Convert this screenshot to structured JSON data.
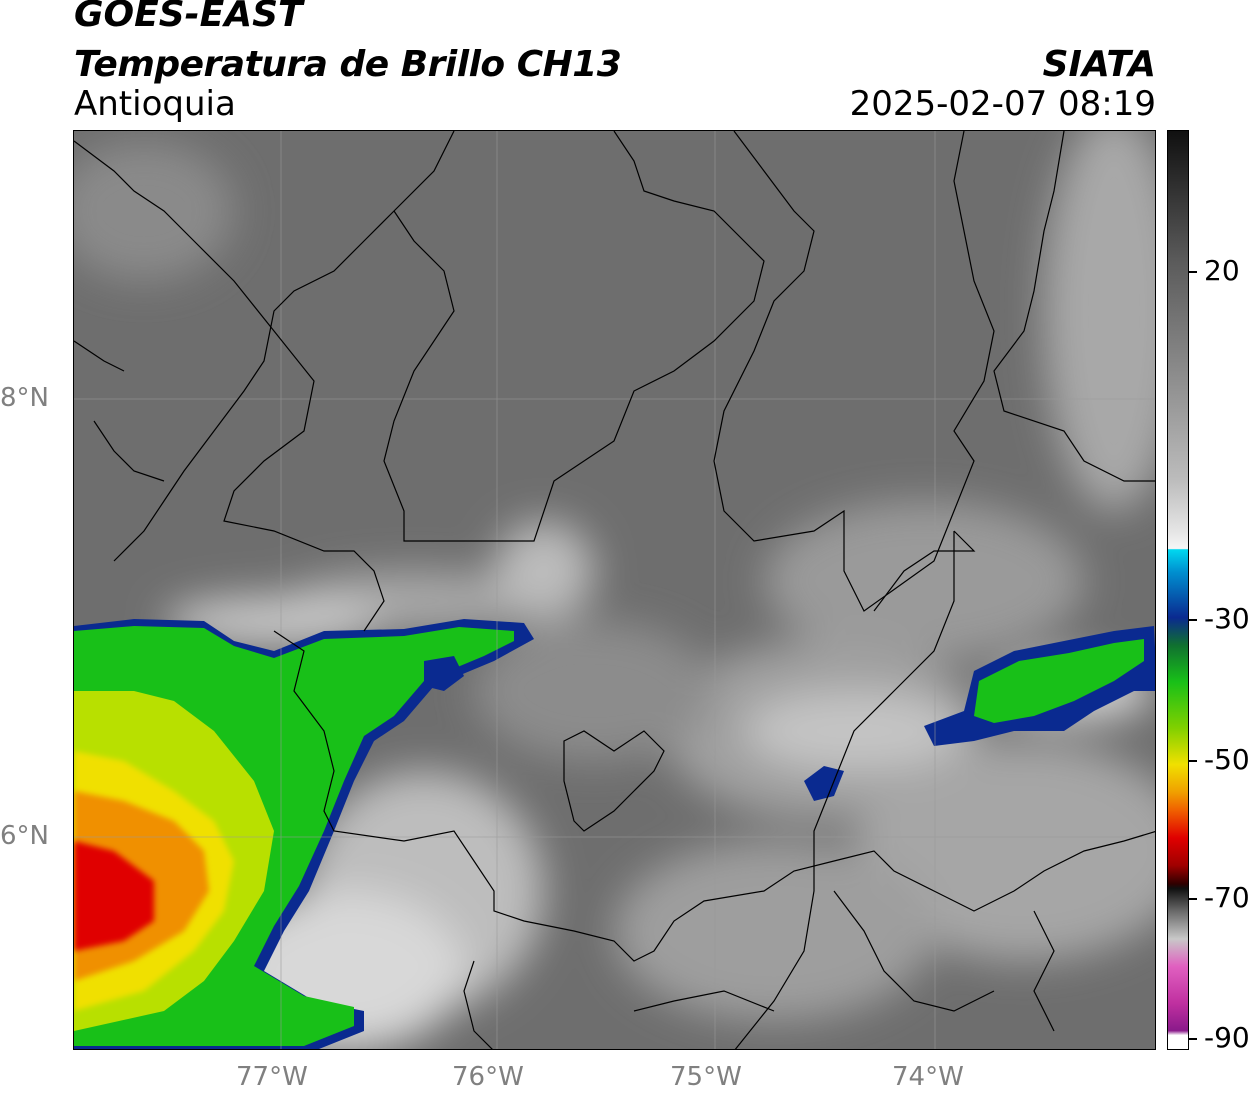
{
  "header": {
    "satellite": "GOES-EAST",
    "product": "Temperatura de Brillo CH13",
    "region": "Antioquia",
    "organization": "SIATA",
    "datetime": "2025-02-07 08:19"
  },
  "map": {
    "lat_labels": [
      "8°N",
      "6°N"
    ],
    "lon_labels": [
      "77°W",
      "76°W",
      "75°W",
      "74°W"
    ]
  },
  "colorbar": {
    "ticks": [
      "20",
      "-30",
      "-50",
      "-70",
      "-90"
    ],
    "colors": {
      "warm_gray": "#7a7a7a",
      "light": "#e8e8e8",
      "cyan": "#00d8f0",
      "blue": "#0a2a90",
      "green": "#18c018",
      "yellow": "#f0e000",
      "orange": "#f09000",
      "red": "#e00000",
      "black": "#101010",
      "magenta": "#c030a0"
    }
  }
}
